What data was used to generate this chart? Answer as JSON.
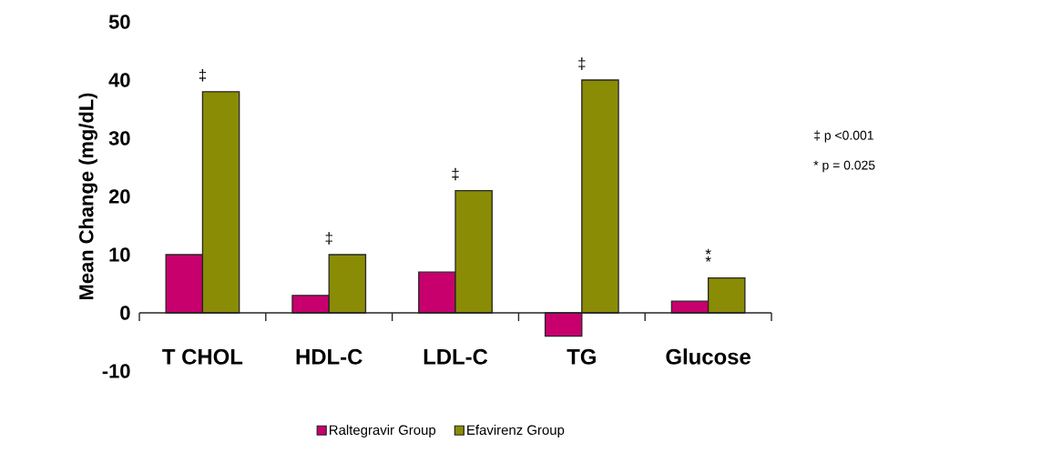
{
  "chart_data": {
    "type": "bar",
    "ylabel": "Mean Change (mg/dL)",
    "categories": [
      "T CHOL",
      "HDL-C",
      "LDL-C",
      "TG",
      "Glucose"
    ],
    "series": [
      {
        "name": "Raltegravir Group",
        "color": "#c8006e",
        "values": [
          10,
          3,
          7,
          -4,
          2
        ]
      },
      {
        "name": "Efavirenz Group",
        "color": "#8a8c05",
        "values": [
          38,
          10,
          21,
          40,
          6
        ]
      }
    ],
    "ylim": [
      -10,
      50
    ],
    "yticks": [
      -10,
      0,
      10,
      20,
      30,
      40,
      50
    ],
    "legend": "bottom",
    "annotations": [
      {
        "text": "‡",
        "x": "T CHOL",
        "y": 38
      },
      {
        "text": "‡",
        "x": "HDL-C",
        "y": 10
      },
      {
        "text": "‡",
        "x": "LDL-C",
        "y": 21
      },
      {
        "text": "‡",
        "x": "TG",
        "y": 40
      },
      {
        "text": "*",
        "x": "Glucose",
        "y": 6
      },
      {
        "text": "*",
        "x": "Glucose",
        "y": 6
      },
      "‡  p <0.001",
      "* p = 0.025"
    ]
  }
}
